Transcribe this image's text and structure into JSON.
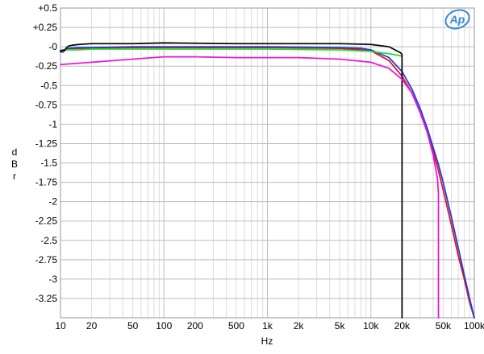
{
  "chart_data": {
    "type": "line",
    "title": "",
    "xlabel": "Hz",
    "ylabel": "dBr",
    "ylabel_chars": [
      "d",
      "B",
      "r"
    ],
    "x_scale": "log",
    "xlim": [
      10,
      100000
    ],
    "ylim": [
      -3.5,
      0.5
    ],
    "grid": true,
    "x_ticks": [
      {
        "value": 10,
        "label": "10"
      },
      {
        "value": 20,
        "label": "20"
      },
      {
        "value": 50,
        "label": "50"
      },
      {
        "value": 100,
        "label": "100"
      },
      {
        "value": 200,
        "label": "200"
      },
      {
        "value": 500,
        "label": "500"
      },
      {
        "value": 1000,
        "label": "1k"
      },
      {
        "value": 2000,
        "label": "2k"
      },
      {
        "value": 5000,
        "label": "5k"
      },
      {
        "value": 10000,
        "label": "10k"
      },
      {
        "value": 20000,
        "label": "20k"
      },
      {
        "value": 50000,
        "label": "50k"
      },
      {
        "value": 100000,
        "label": "100k"
      }
    ],
    "y_ticks": [
      {
        "value": 0.5,
        "label": "+0.5"
      },
      {
        "value": 0.25,
        "label": "+0.25"
      },
      {
        "value": 0,
        "label": "-0"
      },
      {
        "value": -0.25,
        "label": "-0.25"
      },
      {
        "value": -0.5,
        "label": "-0.5"
      },
      {
        "value": -0.75,
        "label": "-0.75"
      },
      {
        "value": -1,
        "label": "-1"
      },
      {
        "value": -1.25,
        "label": "-1.25"
      },
      {
        "value": -1.5,
        "label": "-1.5"
      },
      {
        "value": -1.75,
        "label": "-1.75"
      },
      {
        "value": -2,
        "label": "-2"
      },
      {
        "value": -2.25,
        "label": "-2.25"
      },
      {
        "value": -2.5,
        "label": "-2.5"
      },
      {
        "value": -2.75,
        "label": "-2.75"
      },
      {
        "value": -3,
        "label": "-3"
      },
      {
        "value": -3.25,
        "label": "-3.25"
      }
    ],
    "series": [
      {
        "color": "#e8141e",
        "x": [
          10,
          10.5,
          11,
          12,
          15,
          20,
          50,
          100,
          500,
          1000,
          5000,
          10000,
          15000,
          20000,
          25000,
          30000,
          35000,
          40000,
          45000,
          50000,
          60000,
          70000,
          80000,
          90000,
          100000
        ],
        "y": [
          -0.06,
          -0.07,
          -0.05,
          -0.03,
          -0.02,
          -0.02,
          -0.01,
          -0.01,
          -0.01,
          -0.01,
          -0.02,
          -0.05,
          -0.18,
          -0.38,
          -0.6,
          -0.85,
          -1.1,
          -1.35,
          -1.6,
          -1.85,
          -2.3,
          -2.7,
          -3.0,
          -3.3,
          -3.5
        ]
      },
      {
        "color": "#1c3fd8",
        "x": [
          10,
          10.5,
          11,
          12,
          15,
          20,
          50,
          100,
          500,
          1000,
          5000,
          8000,
          10000,
          15000,
          20000,
          25000,
          30000,
          35000,
          40000,
          45000,
          50000,
          60000,
          70000,
          80000,
          90000,
          100000
        ],
        "y": [
          -0.07,
          -0.06,
          -0.04,
          -0.02,
          -0.01,
          -0.01,
          0.0,
          0.0,
          0.0,
          0.0,
          -0.01,
          -0.02,
          -0.04,
          -0.14,
          -0.32,
          -0.55,
          -0.8,
          -1.05,
          -1.3,
          -1.52,
          -1.75,
          -2.2,
          -2.6,
          -2.95,
          -3.25,
          -3.5
        ]
      },
      {
        "color": "#27dc2b",
        "x": [
          10,
          11,
          12,
          15,
          20,
          50,
          100,
          500,
          1000,
          5000,
          10000,
          15000,
          20000
        ],
        "y": [
          -0.05,
          -0.04,
          -0.04,
          -0.04,
          -0.03,
          -0.03,
          -0.03,
          -0.03,
          -0.03,
          -0.04,
          -0.06,
          -0.09,
          -0.12
        ]
      },
      {
        "color": "#0a0a0a",
        "x": [
          10,
          11,
          11.5,
          12,
          13,
          15,
          20,
          50,
          100,
          500,
          1000,
          5000,
          10000,
          15000,
          19500,
          20000,
          20000
        ],
        "y": [
          -0.05,
          -0.04,
          -0.01,
          0.01,
          0.02,
          0.03,
          0.04,
          0.04,
          0.05,
          0.04,
          0.04,
          0.04,
          0.03,
          0.0,
          -0.08,
          -0.1,
          -3.5
        ]
      },
      {
        "color": "#e619dc",
        "x": [
          10,
          20,
          50,
          100,
          200,
          500,
          1000,
          2000,
          5000,
          10000,
          15000,
          20000,
          25000,
          30000,
          35000,
          40000,
          44000,
          45000,
          45000
        ],
        "y": [
          -0.23,
          -0.2,
          -0.16,
          -0.13,
          -0.13,
          -0.14,
          -0.14,
          -0.14,
          -0.16,
          -0.2,
          -0.28,
          -0.42,
          -0.6,
          -0.85,
          -1.1,
          -1.4,
          -1.7,
          -1.9,
          -3.5
        ]
      }
    ]
  },
  "logo": {
    "text": "Ap",
    "color": "#3a86d8"
  }
}
